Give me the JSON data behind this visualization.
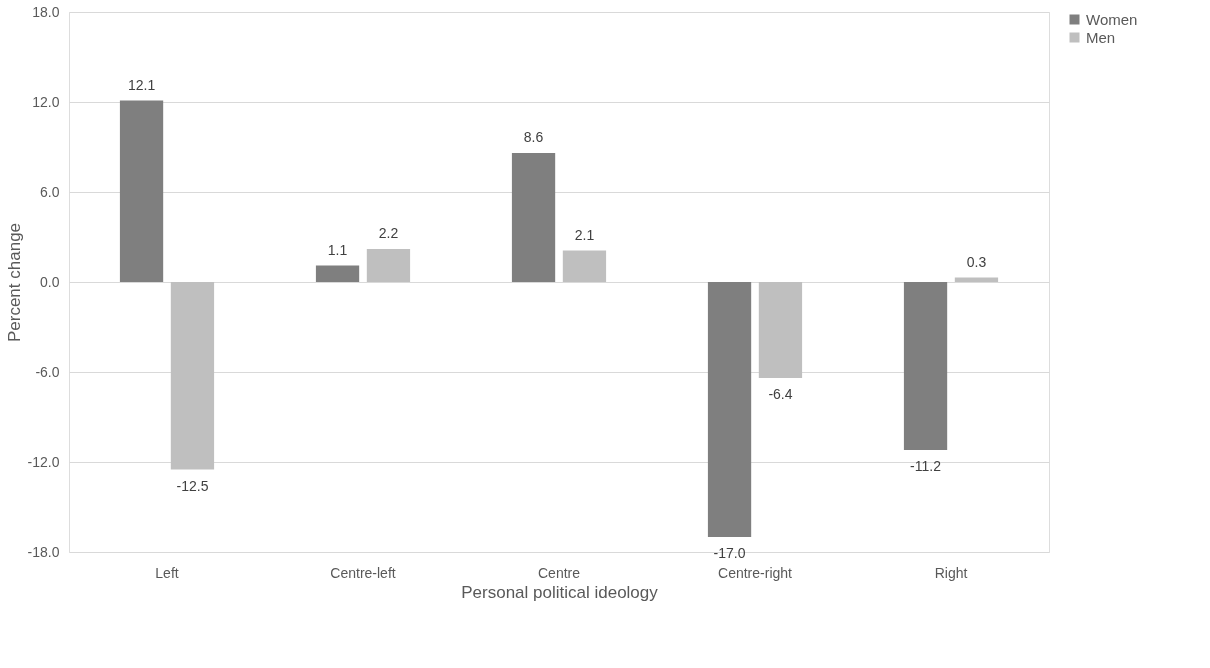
{
  "chart_data": {
    "type": "bar",
    "xlabel": "Personal political ideology",
    "ylabel": "Percent change",
    "categories": [
      "Left",
      "Centre-left",
      "Centre",
      "Centre-right",
      "Right"
    ],
    "series": [
      {
        "name": "Women",
        "color": "#7f7f7f",
        "values": [
          12.1,
          1.1,
          8.6,
          -17.0,
          -11.2
        ],
        "value_labels": [
          "12.1",
          "1.1",
          "8.6",
          "-17.0",
          "-11.2"
        ]
      },
      {
        "name": "Men",
        "color": "#bfbfbf",
        "values": [
          -12.5,
          2.2,
          2.1,
          -6.4,
          0.3
        ],
        "value_labels": [
          "-12.5",
          "2.2",
          "2.1",
          "-6.4",
          "0.3"
        ]
      }
    ],
    "ylim": [
      -18,
      18
    ],
    "yticks": [
      {
        "value": -18,
        "label": "-18.0"
      },
      {
        "value": -12,
        "label": "-12.0"
      },
      {
        "value": -6,
        "label": "-6.0"
      },
      {
        "value": 0,
        "label": "0.0"
      },
      {
        "value": 6,
        "label": "6.0"
      },
      {
        "value": 12,
        "label": "12.0"
      },
      {
        "value": 18,
        "label": "18.0"
      }
    ],
    "grid": "y",
    "legend": "right"
  }
}
